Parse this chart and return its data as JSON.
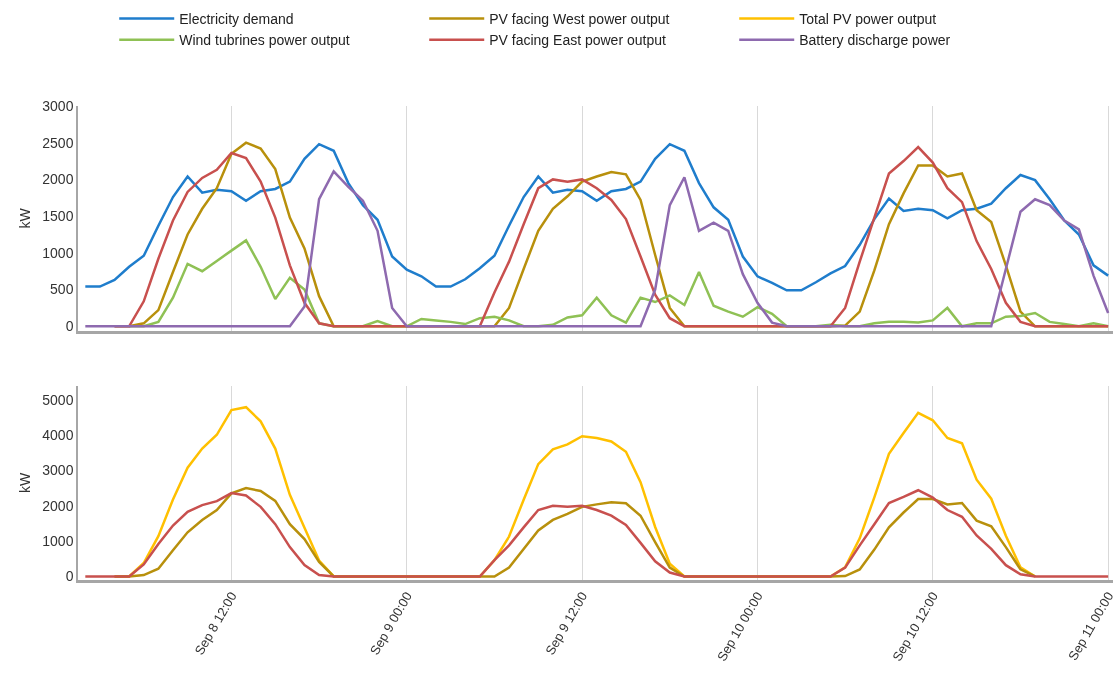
{
  "chart_data": [
    {
      "type": "line",
      "ylabel": "kW",
      "legend": "top",
      "grid": "x",
      "tick_labels": "y",
      "x": [
        "--09-08T02:00",
        "--09-08T03:00",
        "--09-08T04:00",
        "--09-08T05:00",
        "--09-08T06:00",
        "--09-08T07:00",
        "--09-08T08:00",
        "--09-08T09:00",
        "--09-08T10:00",
        "--09-08T11:00",
        "--09-08T12:00",
        "--09-08T13:00",
        "--09-08T14:00",
        "--09-08T15:00",
        "--09-08T16:00",
        "--09-08T17:00",
        "--09-08T18:00",
        "--09-08T19:00",
        "--09-08T20:00",
        "--09-08T21:00",
        "--09-08T22:00",
        "--09-08T23:00",
        "--09-09T00:00",
        "--09-09T01:00",
        "--09-09T02:00",
        "--09-09T03:00",
        "--09-09T04:00",
        "--09-09T05:00",
        "--09-09T06:00",
        "--09-09T07:00",
        "--09-09T08:00",
        "--09-09T09:00",
        "--09-09T10:00",
        "--09-09T11:00",
        "--09-09T12:00",
        "--09-09T13:00",
        "--09-09T14:00",
        "--09-09T15:00",
        "--09-09T16:00",
        "--09-09T17:00",
        "--09-09T18:00",
        "--09-09T19:00",
        "--09-09T20:00",
        "--09-09T21:00",
        "--09-09T22:00",
        "--09-09T23:00",
        "--09-10T00:00",
        "--09-10T01:00",
        "--09-10T02:00",
        "--09-10T03:00",
        "--09-10T04:00",
        "--09-10T05:00",
        "--09-10T06:00",
        "--09-10T07:00",
        "--09-10T08:00",
        "--09-10T09:00",
        "--09-10T10:00",
        "--09-10T11:00",
        "--09-10T12:00",
        "--09-10T13:00",
        "--09-10T14:00",
        "--09-10T15:00",
        "--09-10T16:00",
        "--09-10T17:00",
        "--09-10T18:00",
        "--09-10T19:00",
        "--09-10T20:00",
        "--09-10T21:00",
        "--09-10T22:00",
        "--09-10T23:00",
        "--09-11T00:00"
      ],
      "xlim": [
        "--09-08T01:30",
        "--09-11T00:20"
      ],
      "xticks": [
        {
          "value": "--09-08T12:00",
          "label": "Sep 8 12:00"
        },
        {
          "value": "--09-09T00:00",
          "label": "Sep 9 00:00"
        },
        {
          "value": "--09-09T12:00",
          "label": "Sep 9 12:00"
        },
        {
          "value": "--09-10T00:00",
          "label": "Sep 10 00:00"
        },
        {
          "value": "--09-10T12:00",
          "label": "Sep 10 12:00"
        },
        {
          "value": "--09-11T00:00",
          "label": "Sep 11 00:00"
        }
      ],
      "ylim": [
        -60,
        3000
      ],
      "yticks": [
        0,
        500,
        1000,
        1500,
        2000,
        2500,
        3000
      ],
      "series": [
        {
          "name": "Electricity demand",
          "color": "#1f7dcc",
          "values": [
            540,
            540,
            630,
            810,
            960,
            1370,
            1760,
            2040,
            1820,
            1860,
            1840,
            1710,
            1840,
            1870,
            1970,
            2280,
            2480,
            2390,
            1950,
            1650,
            1450,
            950,
            770,
            680,
            540,
            540,
            640,
            790,
            960,
            1370,
            1760,
            2040,
            1820,
            1860,
            1840,
            1710,
            1840,
            1870,
            1970,
            2280,
            2480,
            2390,
            1950,
            1620,
            1450,
            950,
            680,
            590,
            490,
            490,
            600,
            720,
            820,
            1110,
            1460,
            1740,
            1570,
            1600,
            1580,
            1470,
            1580,
            1600,
            1670,
            1880,
            2060,
            1990,
            1730,
            1440,
            1250,
            830,
            690
          ]
        },
        {
          "name": "PV facing West power output",
          "color": "#b8900c",
          "values": [
            null,
            null,
            0,
            0,
            40,
            220,
            740,
            1250,
            1600,
            1880,
            2350,
            2500,
            2420,
            2140,
            1480,
            1060,
            410,
            0,
            0,
            0,
            0,
            0,
            0,
            0,
            0,
            0,
            0,
            0,
            0,
            250,
            780,
            1300,
            1600,
            1770,
            1970,
            2040,
            2100,
            2070,
            1720,
            970,
            250,
            0,
            0,
            0,
            0,
            0,
            0,
            0,
            0,
            0,
            0,
            0,
            10,
            200,
            760,
            1390,
            1810,
            2190,
            2190,
            2040,
            2080,
            1580,
            1420,
            830,
            200,
            0,
            0,
            0,
            0,
            0,
            0
          ]
        },
        {
          "name": "Wind tubrines power output",
          "color": "#8fc155",
          "values": [
            null,
            null,
            null,
            0,
            0,
            60,
            390,
            850,
            750,
            890,
            1030,
            1170,
            810,
            370,
            660,
            500,
            40,
            0,
            0,
            0,
            70,
            0,
            0,
            100,
            80,
            60,
            30,
            110,
            130,
            80,
            0,
            0,
            20,
            120,
            150,
            390,
            150,
            50,
            390,
            330,
            420,
            290,
            740,
            280,
            200,
            130,
            260,
            170,
            0,
            0,
            0,
            20,
            0,
            0,
            40,
            60,
            60,
            50,
            80,
            250,
            0,
            40,
            40,
            130,
            140,
            180,
            60,
            30,
            0,
            40,
            0
          ]
        },
        {
          "name": "PV facing East power output",
          "color": "#c8504e",
          "values": [
            null,
            null,
            0,
            0,
            340,
            920,
            1440,
            1830,
            2020,
            2130,
            2360,
            2290,
            1970,
            1480,
            830,
            320,
            40,
            0,
            0,
            0,
            0,
            0,
            0,
            0,
            0,
            0,
            0,
            0,
            460,
            880,
            1390,
            1880,
            2000,
            1970,
            2000,
            1880,
            1720,
            1460,
            950,
            430,
            110,
            0,
            0,
            0,
            0,
            0,
            0,
            0,
            0,
            0,
            0,
            0,
            250,
            880,
            1480,
            2080,
            2250,
            2440,
            2230,
            1880,
            1690,
            1160,
            780,
            320,
            60,
            0,
            0,
            0,
            0,
            0,
            0
          ]
        },
        {
          "name": "Battery discharge power",
          "color": "#8e6aaf",
          "values": [
            0,
            0,
            0,
            0,
            0,
            0,
            0,
            0,
            0,
            0,
            0,
            0,
            0,
            0,
            0,
            270,
            1730,
            2110,
            1900,
            1710,
            1300,
            250,
            0,
            0,
            0,
            0,
            0,
            0,
            0,
            0,
            0,
            0,
            0,
            0,
            0,
            0,
            0,
            0,
            0,
            500,
            1650,
            2030,
            1300,
            1410,
            1300,
            710,
            320,
            50,
            0,
            0,
            0,
            0,
            0,
            0,
            0,
            0,
            0,
            0,
            0,
            0,
            0,
            0,
            0,
            780,
            1560,
            1730,
            1650,
            1440,
            1320,
            690,
            180
          ]
        }
      ]
    },
    {
      "type": "line",
      "ylabel": "kW",
      "legend": "top",
      "grid": "x",
      "x": [
        "--09-08T02:00",
        "--09-08T03:00",
        "--09-08T04:00",
        "--09-08T05:00",
        "--09-08T06:00",
        "--09-08T07:00",
        "--09-08T08:00",
        "--09-08T09:00",
        "--09-08T10:00",
        "--09-08T11:00",
        "--09-08T12:00",
        "--09-08T13:00",
        "--09-08T14:00",
        "--09-08T15:00",
        "--09-08T16:00",
        "--09-08T17:00",
        "--09-08T18:00",
        "--09-08T19:00",
        "--09-08T20:00",
        "--09-08T21:00",
        "--09-08T22:00",
        "--09-08T23:00",
        "--09-09T00:00",
        "--09-09T01:00",
        "--09-09T02:00",
        "--09-09T03:00",
        "--09-09T04:00",
        "--09-09T05:00",
        "--09-09T06:00",
        "--09-09T07:00",
        "--09-09T08:00",
        "--09-09T09:00",
        "--09-09T10:00",
        "--09-09T11:00",
        "--09-09T12:00",
        "--09-09T13:00",
        "--09-09T14:00",
        "--09-09T15:00",
        "--09-09T16:00",
        "--09-09T17:00",
        "--09-09T18:00",
        "--09-09T19:00",
        "--09-09T20:00",
        "--09-09T21:00",
        "--09-09T22:00",
        "--09-09T23:00",
        "--09-10T00:00",
        "--09-10T01:00",
        "--09-10T02:00",
        "--09-10T03:00",
        "--09-10T04:00",
        "--09-10T05:00",
        "--09-10T06:00",
        "--09-10T07:00",
        "--09-10T08:00",
        "--09-10T09:00",
        "--09-10T10:00",
        "--09-10T11:00",
        "--09-10T12:00",
        "--09-10T13:00",
        "--09-10T14:00",
        "--09-10T15:00",
        "--09-10T16:00",
        "--09-10T17:00",
        "--09-10T18:00",
        "--09-10T19:00",
        "--09-10T20:00",
        "--09-10T21:00",
        "--09-10T22:00",
        "--09-10T23:00",
        "--09-11T00:00"
      ],
      "xlim": [
        "--09-08T01:30",
        "--09-11T00:20"
      ],
      "xticks": [
        {
          "value": "--09-08T12:00",
          "label": "Sep 8 12:00"
        },
        {
          "value": "--09-09T00:00",
          "label": "Sep 9 00:00"
        },
        {
          "value": "--09-09T12:00",
          "label": "Sep 9 12:00"
        },
        {
          "value": "--09-10T00:00",
          "label": "Sep 10 00:00"
        },
        {
          "value": "--09-10T12:00",
          "label": "Sep 10 12:00"
        },
        {
          "value": "--09-11T00:00",
          "label": "Sep 11 00:00"
        }
      ],
      "ylim": [
        -100,
        5400
      ],
      "yticks": [
        0,
        1000,
        2000,
        3000,
        4000,
        5000
      ],
      "series": [
        {
          "name": "Total PV power output",
          "color": "#ffc000",
          "values": [
            null,
            null,
            0,
            0,
            380,
            1140,
            2180,
            3080,
            3620,
            4010,
            4710,
            4790,
            4390,
            3620,
            2310,
            1380,
            450,
            0,
            0,
            0,
            0,
            0,
            0,
            0,
            0,
            0,
            0,
            0,
            460,
            1130,
            2170,
            3180,
            3600,
            3740,
            3970,
            3920,
            3820,
            3530,
            2670,
            1400,
            360,
            0,
            0,
            0,
            0,
            0,
            0,
            0,
            0,
            0,
            0,
            0,
            260,
            1080,
            2240,
            3470,
            4060,
            4630,
            4420,
            3920,
            3770,
            2740,
            2200,
            1150,
            260,
            0,
            null,
            null,
            null,
            null,
            null
          ]
        },
        {
          "color": "#b8900c",
          "values": [
            null,
            null,
            0,
            0,
            40,
            220,
            740,
            1250,
            1600,
            1880,
            2350,
            2500,
            2420,
            2140,
            1480,
            1060,
            410,
            0,
            0,
            0,
            0,
            0,
            0,
            0,
            0,
            0,
            0,
            0,
            0,
            250,
            780,
            1300,
            1600,
            1770,
            1970,
            2040,
            2100,
            2070,
            1720,
            970,
            250,
            0,
            0,
            0,
            0,
            0,
            0,
            0,
            0,
            0,
            0,
            0,
            10,
            200,
            760,
            1390,
            1810,
            2190,
            2190,
            2040,
            2080,
            1580,
            1420,
            830,
            200,
            0,
            null,
            null,
            null,
            null,
            null
          ]
        },
        {
          "color": "#c8504e",
          "values": [
            0,
            0,
            0,
            0,
            340,
            920,
            1440,
            1830,
            2020,
            2130,
            2360,
            2290,
            1970,
            1480,
            830,
            320,
            40,
            0,
            0,
            0,
            0,
            0,
            0,
            0,
            0,
            0,
            0,
            0,
            460,
            880,
            1390,
            1880,
            2000,
            1970,
            2000,
            1880,
            1720,
            1460,
            950,
            430,
            110,
            0,
            0,
            0,
            0,
            0,
            0,
            0,
            0,
            0,
            0,
            0,
            250,
            880,
            1480,
            2080,
            2250,
            2440,
            2230,
            1880,
            1690,
            1160,
            780,
            320,
            60,
            0,
            0,
            0,
            0,
            0,
            0
          ]
        }
      ]
    }
  ]
}
